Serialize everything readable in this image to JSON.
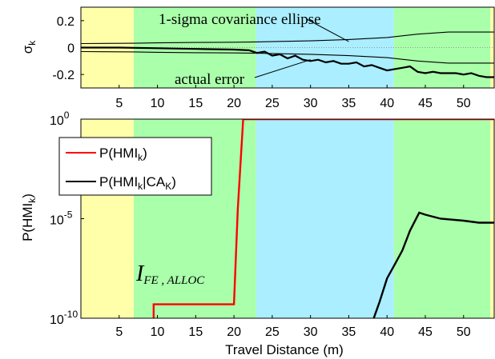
{
  "chart_data": [
    {
      "type": "line",
      "ylabel": "σ",
      "ylabel_sub": "k",
      "xlim": [
        0,
        54
      ],
      "ylim": [
        -0.3,
        0.3
      ],
      "yticks": [
        "0.2",
        "0",
        "-0.2"
      ],
      "ytick_values": [
        0.2,
        0,
        -0.2
      ],
      "xticks": [
        "5",
        "10",
        "15",
        "20",
        "25",
        "30",
        "35",
        "40",
        "45",
        "50"
      ],
      "xtick_values": [
        5,
        10,
        15,
        20,
        25,
        30,
        35,
        40,
        45,
        50
      ],
      "bands": [
        {
          "x0": 0,
          "x1": 6.9,
          "color": "#ffffaa"
        },
        {
          "x0": 6.9,
          "x1": 22.9,
          "color": "#aaffaa"
        },
        {
          "x0": 22.9,
          "x1": 40.9,
          "color": "#aaeeff"
        },
        {
          "x0": 40.9,
          "x1": 53.5,
          "color": "#aaffaa"
        },
        {
          "x0": 53.5,
          "x1": 54,
          "color": "#ffffaa"
        }
      ],
      "annotations": [
        {
          "text": "1-sigma covariance ellipse",
          "target": [
            35,
            0.045
          ]
        },
        {
          "text": "actual error",
          "target": [
            30,
            -0.09
          ]
        }
      ],
      "series": [
        {
          "role": "upper",
          "color": "#000000",
          "x": [
            0,
            7,
            10,
            15,
            20,
            23,
            26,
            30,
            35,
            40,
            44,
            48,
            54
          ],
          "y": [
            0.03,
            0.032,
            0.035,
            0.038,
            0.04,
            0.042,
            0.046,
            0.05,
            0.06,
            0.075,
            0.1,
            0.115,
            0.115
          ]
        },
        {
          "role": "lower",
          "color": "#000000",
          "x": [
            0,
            7,
            10,
            15,
            20,
            23,
            26,
            30,
            35,
            40,
            44,
            48,
            54
          ],
          "y": [
            -0.03,
            -0.032,
            -0.035,
            -0.038,
            -0.04,
            -0.042,
            -0.046,
            -0.05,
            -0.06,
            -0.075,
            -0.1,
            -0.115,
            -0.115
          ]
        },
        {
          "role": "error",
          "color": "#000000",
          "x": [
            0,
            5,
            10,
            15,
            20,
            22,
            23,
            24,
            25,
            26,
            27,
            28,
            29,
            30,
            31,
            32,
            33,
            34,
            35,
            36,
            37,
            38,
            39,
            40,
            41,
            42,
            43,
            44,
            45,
            46,
            47,
            48,
            49,
            50,
            51,
            52,
            53,
            54
          ],
          "y": [
            0.0,
            0.0,
            -0.005,
            -0.01,
            -0.015,
            -0.02,
            -0.04,
            -0.03,
            -0.06,
            -0.05,
            -0.08,
            -0.06,
            -0.09,
            -0.1,
            -0.09,
            -0.11,
            -0.1,
            -0.12,
            -0.12,
            -0.11,
            -0.14,
            -0.13,
            -0.15,
            -0.17,
            -0.16,
            -0.15,
            -0.14,
            -0.18,
            -0.19,
            -0.18,
            -0.19,
            -0.19,
            -0.19,
            -0.2,
            -0.19,
            -0.21,
            -0.22,
            -0.22
          ]
        }
      ]
    },
    {
      "type": "line",
      "xlabel": "Travel Distance (m)",
      "ylabel": "P(HMI",
      "ylabel_sub": "k",
      "ylabel_end": ")",
      "yscale": "log",
      "xlim": [
        0,
        54
      ],
      "ylim_exp": [
        -10,
        0
      ],
      "yticks": [
        {
          "base": "10",
          "exp": "0",
          "value_exp": 0
        },
        {
          "base": "10",
          "exp": "-5",
          "value_exp": -5
        },
        {
          "base": "10",
          "exp": "-10",
          "value_exp": -10
        }
      ],
      "xticks": [
        "5",
        "10",
        "15",
        "20",
        "25",
        "30",
        "35",
        "40",
        "45",
        "50"
      ],
      "xtick_values": [
        5,
        10,
        15,
        20,
        25,
        30,
        35,
        40,
        45,
        50
      ],
      "bands": [
        {
          "x0": 0,
          "x1": 6.9,
          "color": "#ffffaa"
        },
        {
          "x0": 6.9,
          "x1": 22.9,
          "color": "#aaffaa"
        },
        {
          "x0": 22.9,
          "x1": 40.9,
          "color": "#aaeeff"
        },
        {
          "x0": 40.9,
          "x1": 53.5,
          "color": "#aaffaa"
        },
        {
          "x0": 53.5,
          "x1": 54,
          "color": "#ffffaa"
        }
      ],
      "annotation": {
        "main": "I",
        "sub": "FE , ALLOC"
      },
      "legend": [
        {
          "label": "P(HMI",
          "sub": "k",
          "label_end": ")",
          "color": "#ff0000"
        },
        {
          "label": "P(HMI",
          "sub": "k",
          "mid": "|CA",
          "sub2": "K",
          "label_end": ")",
          "color": "#000000"
        }
      ],
      "series": [
        {
          "name": "P(HMI_k)",
          "color": "#ff0000",
          "x": [
            9.5,
            9.5,
            10,
            20,
            20.5,
            21.2,
            54
          ],
          "log10_y": [
            -12,
            -9.3,
            -9.3,
            -9.3,
            -4.5,
            0,
            0
          ]
        },
        {
          "name": "P(HMI_k|CA_K)",
          "color": "#000000",
          "x": [
            37.8,
            39,
            40,
            41,
            42,
            43,
            44.2,
            45,
            47,
            50,
            52,
            54
          ],
          "log10_y": [
            -10.5,
            -9.2,
            -8.0,
            -7.3,
            -6.6,
            -5.6,
            -4.7,
            -4.8,
            -5.0,
            -5.1,
            -5.2,
            -5.2
          ]
        }
      ]
    }
  ]
}
